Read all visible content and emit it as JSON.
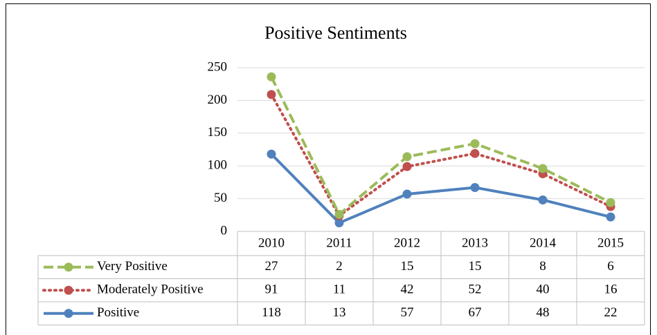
{
  "chart_data": {
    "type": "line",
    "stacked": true,
    "title": "Positive Sentiments",
    "categories": [
      "2010",
      "2011",
      "2012",
      "2013",
      "2014",
      "2015"
    ],
    "series": [
      {
        "name": "Very Positive",
        "color": "#9bbb59",
        "dash": "dashed",
        "values": [
          27,
          2,
          15,
          15,
          8,
          6
        ]
      },
      {
        "name": "Moderately Positive",
        "color": "#c0504d",
        "dash": "dotted",
        "values": [
          91,
          11,
          42,
          52,
          40,
          16
        ]
      },
      {
        "name": "Positive",
        "color": "#4f81bd",
        "dash": "solid",
        "values": [
          118,
          13,
          57,
          67,
          48,
          22
        ]
      }
    ],
    "ylim": [
      0,
      250
    ],
    "yticks": [
      0,
      50,
      100,
      150,
      200,
      250
    ],
    "grid": true,
    "data_table": true
  }
}
